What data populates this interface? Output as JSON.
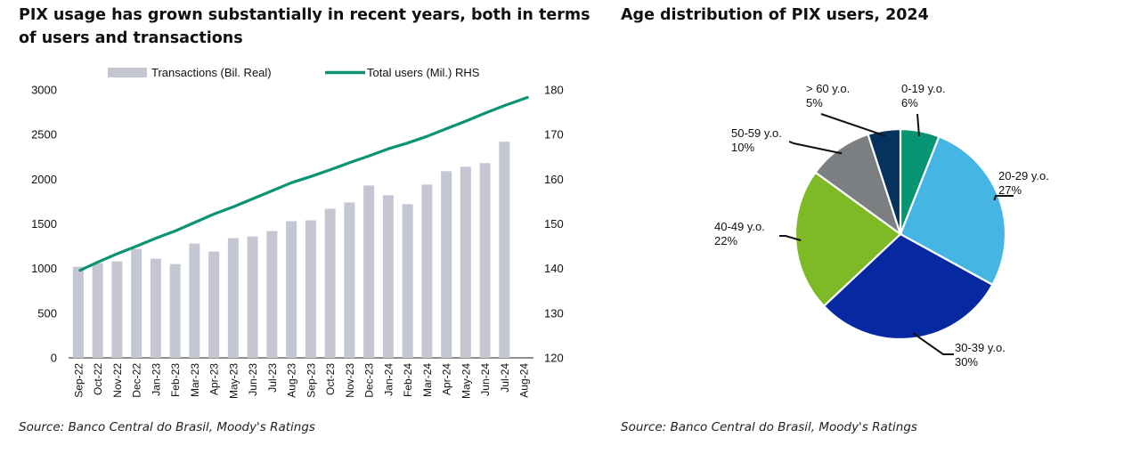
{
  "left": {
    "title": "PIX usage has grown substantially in recent years, both in terms of users and transactions",
    "source": "Source: Banco Central do Brasil, Moody's Ratings"
  },
  "right": {
    "title": "Age distribution of PIX users, 2024",
    "source": "Source: Banco Central do Brasil, Moody's Ratings"
  },
  "colors": {
    "bars": "#c4c7d2",
    "line": "#0a9474",
    "pie": [
      "#069473",
      "#45b5e4",
      "#0628a0",
      "#7dba25",
      "#7c7f82",
      "#06325e"
    ]
  },
  "chart_data": [
    {
      "type": "bar",
      "categories": [
        "Sep-22",
        "Oct-22",
        "Nov-22",
        "Dec-22",
        "Jan-23",
        "Feb-23",
        "Mar-23",
        "Apr-23",
        "May-23",
        "Jun-23",
        "Jul-23",
        "Aug-23",
        "Sep-23",
        "Oct-23",
        "Nov-23",
        "Dec-23",
        "Jan-24",
        "Feb-24",
        "Mar-24",
        "Apr-24",
        "May-24",
        "Jun-24",
        "Jul-24",
        "Aug-24"
      ],
      "series": [
        {
          "name": "Transactions (Bil. Real)",
          "type": "bar",
          "axis": "left",
          "values": [
            1020,
            1060,
            1080,
            1220,
            1110,
            1050,
            1280,
            1190,
            1340,
            1360,
            1420,
            1530,
            1540,
            1670,
            1740,
            1930,
            1820,
            1720,
            1940,
            2090,
            2140,
            2180,
            2420,
            null
          ]
        },
        {
          "name": "Total users (Mil.) RHS",
          "type": "line",
          "axis": "right",
          "values": [
            139.6,
            141.4,
            143.3,
            145.0,
            146.8,
            148.4,
            150.3,
            152.2,
            153.8,
            155.6,
            157.4,
            159.2,
            160.6,
            162.1,
            163.7,
            165.2,
            166.8,
            168.1,
            169.6,
            171.3,
            173.0,
            174.8,
            176.5,
            178.3
          ]
        }
      ],
      "y_left": {
        "range": [
          0,
          3000
        ],
        "ticks": [
          0,
          500,
          1000,
          1500,
          2000,
          2500,
          3000
        ]
      },
      "y_right": {
        "range": [
          120,
          180
        ],
        "ticks": [
          120,
          130,
          140,
          150,
          160,
          170,
          180
        ]
      },
      "legend": "top",
      "grid": false
    },
    {
      "type": "pie",
      "slices": [
        {
          "label": "0-19 y.o.",
          "value_label": "6%",
          "value": 6
        },
        {
          "label": "20-29 y.o.",
          "value_label": "27%",
          "value": 27
        },
        {
          "label": "30-39 y.o.",
          "value_label": "30%",
          "value": 30
        },
        {
          "label": "40-49 y.o.",
          "value_label": "22%",
          "value": 22
        },
        {
          "label": "50-59 y.o.",
          "value_label": "10%",
          "value": 10
        },
        {
          "label": "> 60 y.o.",
          "value_label": "5%",
          "value": 5
        }
      ]
    }
  ]
}
